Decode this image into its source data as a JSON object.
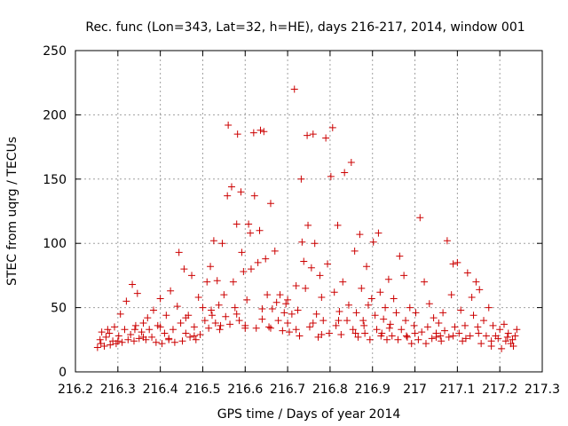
{
  "chart_data": {
    "type": "scatter",
    "title": "Rec. func (Lon=343, Lat=32, h=HE), days 216-217, 2014, window 001",
    "xlabel": "GPS time / Days of year 2014",
    "ylabel": "STEC from uqrg / TECUs",
    "xlim": [
      216.2,
      217.3
    ],
    "ylim": [
      0,
      250
    ],
    "xticks": [
      216.2,
      216.3,
      216.4,
      216.5,
      216.6,
      216.7,
      216.8,
      216.9,
      217.0,
      217.1,
      217.2,
      217.3
    ],
    "xtick_labels": [
      "216.2",
      "216.3",
      "216.4",
      "216.5",
      "216.6",
      "216.7",
      "216.8",
      "216.9",
      "217",
      "217.1",
      "217.2",
      "217.3"
    ],
    "yticks": [
      0,
      50,
      100,
      150,
      200,
      250
    ],
    "ytick_labels": [
      "0",
      "50",
      "100",
      "150",
      "200",
      "250"
    ],
    "grid": true,
    "marker": "plus",
    "color": "#cc0000",
    "series": [
      {
        "values": [
          [
            216.252,
            19
          ],
          [
            216.258,
            25
          ],
          [
            216.262,
            31
          ],
          [
            216.268,
            20
          ],
          [
            216.272,
            27
          ],
          [
            216.276,
            33
          ],
          [
            216.282,
            21
          ],
          [
            216.288,
            24
          ],
          [
            216.292,
            35
          ],
          [
            216.296,
            22
          ],
          [
            216.302,
            28
          ],
          [
            216.306,
            45
          ],
          [
            216.31,
            23
          ],
          [
            216.316,
            33
          ],
          [
            216.32,
            55
          ],
          [
            216.324,
            25
          ],
          [
            216.33,
            29
          ],
          [
            216.334,
            68
          ],
          [
            216.338,
            24
          ],
          [
            216.342,
            36
          ],
          [
            216.346,
            61
          ],
          [
            216.35,
            26
          ],
          [
            216.356,
            31
          ],
          [
            216.36,
            38
          ],
          [
            216.366,
            25
          ],
          [
            216.37,
            42
          ],
          [
            216.374,
            33
          ],
          [
            216.38,
            27
          ],
          [
            216.384,
            48
          ],
          [
            216.39,
            23
          ],
          [
            216.394,
            36
          ],
          [
            216.4,
            57
          ],
          [
            216.404,
            22
          ],
          [
            216.41,
            30
          ],
          [
            216.414,
            44
          ],
          [
            216.42,
            25
          ],
          [
            216.424,
            63
          ],
          [
            216.43,
            33
          ],
          [
            216.434,
            23
          ],
          [
            216.44,
            51
          ],
          [
            216.444,
            93
          ],
          [
            216.448,
            38
          ],
          [
            216.452,
            24
          ],
          [
            216.456,
            80
          ],
          [
            216.46,
            30
          ],
          [
            216.466,
            44
          ],
          [
            216.47,
            27
          ],
          [
            216.474,
            75
          ],
          [
            216.48,
            35
          ],
          [
            216.484,
            25
          ],
          [
            216.49,
            58
          ],
          [
            216.494,
            29
          ],
          [
            216.5,
            50
          ],
          [
            216.505,
            40
          ],
          [
            216.51,
            70
          ],
          [
            216.514,
            34
          ],
          [
            216.518,
            82
          ],
          [
            216.522,
            44
          ],
          [
            216.526,
            102
          ],
          [
            216.53,
            38
          ],
          [
            216.534,
            71
          ],
          [
            216.538,
            52
          ],
          [
            216.542,
            36
          ],
          [
            216.546,
            100
          ],
          [
            216.55,
            60
          ],
          [
            216.554,
            43
          ],
          [
            216.558,
            137
          ],
          [
            216.56,
            192
          ],
          [
            216.564,
            37
          ],
          [
            216.568,
            144
          ],
          [
            216.572,
            70
          ],
          [
            216.576,
            50
          ],
          [
            216.58,
            115
          ],
          [
            216.582,
            185
          ],
          [
            216.586,
            40
          ],
          [
            216.59,
            140
          ],
          [
            216.592,
            93
          ],
          [
            216.596,
            78
          ],
          [
            216.6,
            36
          ],
          [
            216.604,
            56
          ],
          [
            216.608,
            115
          ],
          [
            216.612,
            108
          ],
          [
            216.614,
            80
          ],
          [
            216.62,
            186
          ],
          [
            216.622,
            137
          ],
          [
            216.626,
            34
          ],
          [
            216.63,
            85
          ],
          [
            216.634,
            110
          ],
          [
            216.636,
            188
          ],
          [
            216.64,
            49
          ],
          [
            216.644,
            187
          ],
          [
            216.648,
            88
          ],
          [
            216.652,
            60
          ],
          [
            216.656,
            35
          ],
          [
            216.66,
            131
          ],
          [
            216.664,
            49
          ],
          [
            216.67,
            94
          ],
          [
            216.674,
            54
          ],
          [
            216.678,
            40
          ],
          [
            216.682,
            60
          ],
          [
            216.688,
            32
          ],
          [
            216.692,
            46
          ],
          [
            216.696,
            53
          ],
          [
            216.7,
            38
          ],
          [
            216.704,
            31
          ],
          [
            216.71,
            45
          ],
          [
            216.716,
            220
          ],
          [
            216.72,
            67
          ],
          [
            216.724,
            48
          ],
          [
            216.728,
            28
          ],
          [
            216.732,
            150
          ],
          [
            216.734,
            101
          ],
          [
            216.738,
            86
          ],
          [
            216.742,
            65
          ],
          [
            216.746,
            184
          ],
          [
            216.748,
            114
          ],
          [
            216.752,
            35
          ],
          [
            216.756,
            81
          ],
          [
            216.76,
            185
          ],
          [
            216.764,
            100
          ],
          [
            216.768,
            45
          ],
          [
            216.772,
            27
          ],
          [
            216.776,
            75
          ],
          [
            216.78,
            58
          ],
          [
            216.784,
            40
          ],
          [
            216.79,
            182
          ],
          [
            216.794,
            84
          ],
          [
            216.798,
            30
          ],
          [
            216.802,
            152
          ],
          [
            216.806,
            190
          ],
          [
            216.81,
            62
          ],
          [
            216.814,
            36
          ],
          [
            216.818,
            114
          ],
          [
            216.822,
            47
          ],
          [
            216.826,
            29
          ],
          [
            216.83,
            70
          ],
          [
            216.834,
            155
          ],
          [
            216.84,
            40
          ],
          [
            216.844,
            52
          ],
          [
            216.85,
            163
          ],
          [
            216.854,
            33
          ],
          [
            216.858,
            94
          ],
          [
            216.862,
            46
          ],
          [
            216.866,
            27
          ],
          [
            216.87,
            107
          ],
          [
            216.874,
            65
          ],
          [
            216.878,
            40
          ],
          [
            216.882,
            30
          ],
          [
            216.886,
            82
          ],
          [
            216.89,
            52
          ],
          [
            216.894,
            25
          ],
          [
            216.898,
            57
          ],
          [
            216.902,
            101
          ],
          [
            216.906,
            44
          ],
          [
            216.91,
            33
          ],
          [
            216.914,
            108
          ],
          [
            216.918,
            62
          ],
          [
            216.922,
            30
          ],
          [
            216.926,
            41
          ],
          [
            216.93,
            50
          ],
          [
            216.934,
            25
          ],
          [
            216.938,
            72
          ],
          [
            216.942,
            37
          ],
          [
            216.946,
            28
          ],
          [
            216.95,
            57
          ],
          [
            216.956,
            46
          ],
          [
            216.96,
            25
          ],
          [
            216.964,
            90
          ],
          [
            216.968,
            33
          ],
          [
            216.974,
            75
          ],
          [
            216.978,
            40
          ],
          [
            216.982,
            27
          ],
          [
            216.988,
            50
          ],
          [
            216.992,
            22
          ],
          [
            216.998,
            36
          ],
          [
            217.002,
            46
          ],
          [
            217.008,
            25
          ],
          [
            217.012,
            120
          ],
          [
            217.016,
            31
          ],
          [
            217.022,
            70
          ],
          [
            217.026,
            22
          ],
          [
            217.03,
            35
          ],
          [
            217.034,
            53
          ],
          [
            217.04,
            26
          ],
          [
            217.044,
            42
          ],
          [
            217.05,
            30
          ],
          [
            217.056,
            38
          ],
          [
            217.062,
            24
          ],
          [
            217.066,
            46
          ],
          [
            217.07,
            32
          ],
          [
            217.076,
            102
          ],
          [
            217.08,
            27
          ],
          [
            217.086,
            60
          ],
          [
            217.09,
            84
          ],
          [
            217.094,
            35
          ],
          [
            217.1,
            85
          ],
          [
            217.104,
            30
          ],
          [
            217.108,
            48
          ],
          [
            217.112,
            24
          ],
          [
            217.118,
            36
          ],
          [
            217.124,
            77
          ],
          [
            217.13,
            28
          ],
          [
            217.134,
            58
          ],
          [
            217.138,
            44
          ],
          [
            217.144,
            70
          ],
          [
            217.148,
            35
          ],
          [
            217.152,
            64
          ],
          [
            217.156,
            22
          ],
          [
            217.162,
            40
          ],
          [
            217.168,
            28
          ],
          [
            217.174,
            50
          ],
          [
            217.18,
            20
          ],
          [
            217.184,
            36
          ],
          [
            217.19,
            28
          ],
          [
            217.196,
            26
          ],
          [
            217.2,
            33
          ],
          [
            217.204,
            18
          ],
          [
            217.21,
            37
          ],
          [
            217.214,
            24
          ],
          [
            217.22,
            30
          ],
          [
            217.226,
            22
          ],
          [
            217.232,
            20
          ],
          [
            217.236,
            28
          ],
          [
            217.24,
            33
          ],
          [
            217.218,
            27
          ],
          [
            217.15,
            30
          ],
          [
            217.09,
            28
          ],
          [
            217.05,
            27
          ],
          [
            216.98,
            28
          ],
          [
            216.92,
            28
          ],
          [
            216.86,
            30
          ],
          [
            216.78,
            29
          ],
          [
            216.72,
            33
          ],
          [
            216.66,
            34
          ],
          [
            216.6,
            34
          ],
          [
            216.54,
            33
          ],
          [
            216.48,
            28
          ],
          [
            216.42,
            26
          ],
          [
            216.36,
            27
          ],
          [
            216.3,
            24
          ],
          [
            216.26,
            22
          ],
          [
            216.28,
            30
          ],
          [
            216.34,
            33
          ],
          [
            216.4,
            35
          ],
          [
            216.46,
            42
          ],
          [
            216.52,
            48
          ],
          [
            216.58,
            45
          ],
          [
            216.64,
            41
          ],
          [
            216.7,
            56
          ],
          [
            216.76,
            38
          ],
          [
            216.82,
            40
          ],
          [
            216.88,
            36
          ],
          [
            216.94,
            34
          ],
          [
            217.0,
            30
          ],
          [
            217.06,
            28
          ],
          [
            217.12,
            26
          ],
          [
            217.18,
            24
          ],
          [
            217.23,
            25
          ]
        ]
      }
    ]
  }
}
